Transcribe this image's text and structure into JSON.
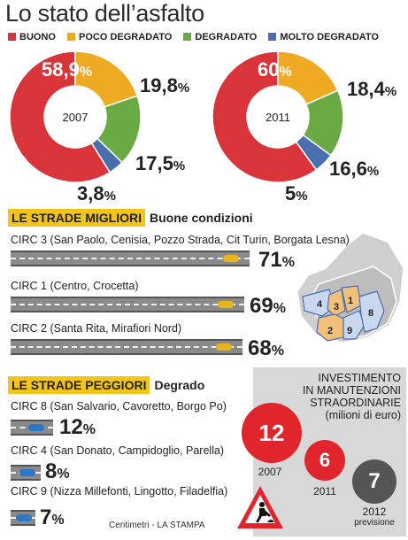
{
  "title": "Lo stato dell’asfalto",
  "legend": [
    {
      "label": "BUONO",
      "color": "#d9343a"
    },
    {
      "label": "POCO DEGRADATO",
      "color": "#eeaa22"
    },
    {
      "label": "DEGRADATO",
      "color": "#6aaa45"
    },
    {
      "label": "MOLTO DEGRADATO",
      "color": "#4a6fae"
    }
  ],
  "chart_data": [
    {
      "type": "pie",
      "center_label": "2007",
      "categories": [
        "BUONO",
        "POCO DEGRADATO",
        "DEGRADATO",
        "MOLTO DEGRADATO"
      ],
      "values": [
        58.9,
        19.8,
        17.5,
        3.8
      ],
      "labels": [
        "58,9",
        "19,8",
        "17,5",
        "3,8"
      ],
      "unit": "%"
    },
    {
      "type": "pie",
      "center_label": "2011",
      "categories": [
        "BUONO",
        "POCO DEGRADATO",
        "DEGRADATO",
        "MOLTO DEGRADATO"
      ],
      "values": [
        60,
        18.4,
        16.6,
        5
      ],
      "labels": [
        "60",
        "18,4",
        "16,6",
        "5"
      ],
      "unit": "%"
    },
    {
      "type": "bar",
      "title": "INVESTIMENTO IN MANUTENZIONI STRAORDINARIE (milioni di euro)",
      "categories": [
        "2007",
        "2011",
        "2012"
      ],
      "category_notes": [
        "",
        "",
        "previsione"
      ],
      "values": [
        12,
        6,
        7
      ]
    }
  ],
  "best": {
    "tag": "LE STRADE MIGLIORI",
    "title": "Buone condizioni",
    "rows": [
      {
        "label": "CIRC 3 (San Paolo, Cenisia, Pozzo Strada, Cit Turin, Borgata Lesna)",
        "value": "71",
        "pct": 71
      },
      {
        "label": "CIRC 1 (Centro, Crocetta)",
        "value": "69",
        "pct": 69
      },
      {
        "label": "CIRC 2 (Santa Rita, Mirafiori Nord)",
        "value": "68",
        "pct": 68
      }
    ]
  },
  "worst": {
    "tag": "LE STRADE PEGGIORI",
    "title": "Degrado",
    "rows": [
      {
        "label": "CIRC 8 (San Salvario, Cavoretto, Borgo Po)",
        "value": "12",
        "pct": 12
      },
      {
        "label": "CIRC 4 (San Donato, Campidoglio, Parella)",
        "value": "8",
        "pct": 8
      },
      {
        "label": "CIRC 9 (Nizza Millefonti, Lingotto, Filadelfia)",
        "value": "7",
        "pct": 7
      }
    ]
  },
  "pct_symbol": "%",
  "map_labels": [
    "4",
    "3",
    "1",
    "2",
    "9",
    "8"
  ],
  "investment": {
    "title_lines": [
      "INVESTIMENTO",
      "IN MANUTENZIONI",
      "STRAORDINARIE",
      "(milioni di euro)"
    ]
  },
  "source": "Centimetri - LA STAMPA",
  "colors": {
    "accent": "#f3c51b",
    "road": "#8a8a8a",
    "good_car": "#e9b51d",
    "bad_car": "#2a78c7",
    "invest_2012": "#555555"
  }
}
